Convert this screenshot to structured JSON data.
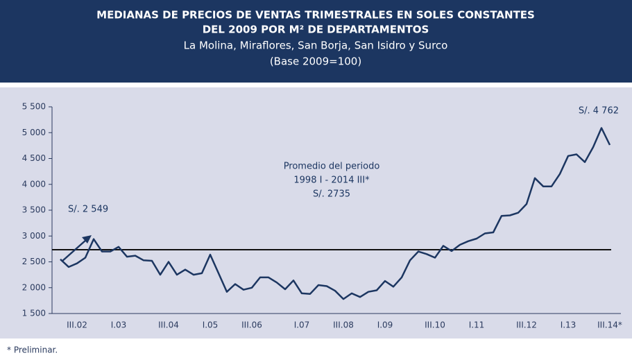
{
  "chart_data": {
    "type": "line",
    "title": [
      "MEDIANAS DE PRECIOS DE VENTAS TRIMESTRALES EN SOLES CONSTANTES",
      "DEL 2009 POR M² DE DEPARTAMENTOS"
    ],
    "subtitle": [
      "La Molina, Miraflores, San Borja, San Isidro y Surco",
      "(Base 2009=100)"
    ],
    "footnote": "* Preliminar.",
    "categories": [
      null,
      null,
      "III.02",
      null,
      null,
      null,
      null,
      "I.03",
      null,
      null,
      null,
      null,
      null,
      "III.04",
      null,
      null,
      null,
      null,
      "I.05",
      null,
      null,
      null,
      null,
      "III.06",
      null,
      null,
      null,
      null,
      null,
      "I.07",
      null,
      null,
      null,
      null,
      "III.08",
      null,
      null,
      null,
      null,
      "I.09",
      null,
      null,
      null,
      null,
      null,
      "III.10",
      null,
      null,
      null,
      null,
      "I.11",
      null,
      null,
      null,
      null,
      null,
      "III.12",
      null,
      null,
      null,
      null,
      "I.13",
      null,
      null,
      null,
      null,
      "III.14*"
    ],
    "values": [
      2549,
      2400,
      2470,
      2580,
      2940,
      2700,
      2700,
      2790,
      2600,
      2620,
      2530,
      2520,
      2250,
      2500,
      2250,
      2350,
      2250,
      2280,
      2640,
      2280,
      1920,
      2070,
      1960,
      2000,
      2200,
      2200,
      2100,
      1970,
      2140,
      1890,
      1880,
      2050,
      2030,
      1940,
      1780,
      1890,
      1820,
      1920,
      1950,
      2130,
      2020,
      2200,
      2530,
      2700,
      2650,
      2580,
      2810,
      2710,
      2830,
      2900,
      2950,
      3050,
      3070,
      3390,
      3400,
      3450,
      3620,
      4120,
      3960,
      3960,
      4200,
      4550,
      4580,
      4430,
      4720,
      5090,
      4762
    ],
    "color": "#1c3661",
    "average": 2735,
    "average_color": "#111111",
    "ylim": [
      1500,
      5500
    ],
    "yticks": [
      {
        "value": 1500,
        "label": "1 500"
      },
      {
        "value": 2000,
        "label": "2 000"
      },
      {
        "value": 2500,
        "label": "2 500"
      },
      {
        "value": 3000,
        "label": "3 000"
      },
      {
        "value": 3500,
        "label": "3 500"
      },
      {
        "value": 4000,
        "label": "4 000"
      },
      {
        "value": 4500,
        "label": "4 500"
      },
      {
        "value": 5000,
        "label": "5 000"
      },
      {
        "value": 5500,
        "label": "5 500"
      }
    ],
    "annotations": [
      "S/. 4 762",
      "Promedio del periodo",
      "1998 I - 2014 III*",
      "S/. 2735",
      "S/. 2 549"
    ]
  }
}
